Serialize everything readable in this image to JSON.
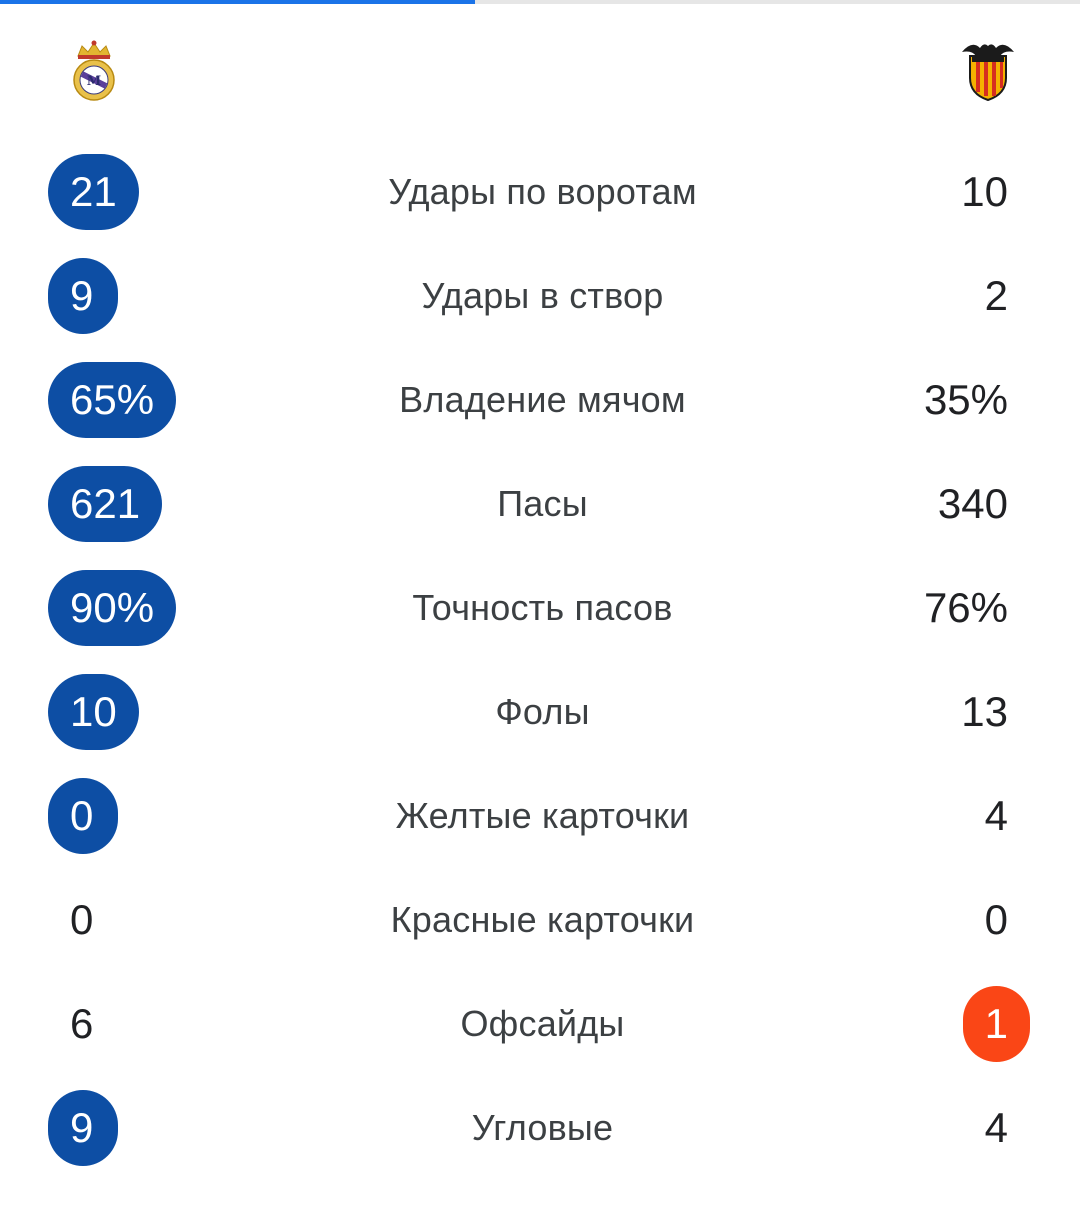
{
  "teams": {
    "home": {
      "crest_icon": "real-madrid-crest-icon",
      "highlight_color": "#0d4ea4"
    },
    "away": {
      "crest_icon": "valencia-crest-icon",
      "highlight_color": "#fa4616"
    }
  },
  "stats": [
    {
      "label": "Удары по воротам",
      "home": "21",
      "away": "10",
      "leader": "home"
    },
    {
      "label": "Удары в створ",
      "home": "9",
      "away": "2",
      "leader": "home"
    },
    {
      "label": "Владение мячом",
      "home": "65%",
      "away": "35%",
      "leader": "home"
    },
    {
      "label": "Пасы",
      "home": "621",
      "away": "340",
      "leader": "home"
    },
    {
      "label": "Точность пасов",
      "home": "90%",
      "away": "76%",
      "leader": "home"
    },
    {
      "label": "Фолы",
      "home": "10",
      "away": "13",
      "leader": "home"
    },
    {
      "label": "Желтые карточки",
      "home": "0",
      "away": "4",
      "leader": "home"
    },
    {
      "label": "Красные карточки",
      "home": "0",
      "away": "0",
      "leader": "none"
    },
    {
      "label": "Офсайды",
      "home": "6",
      "away": "1",
      "leader": "away"
    },
    {
      "label": "Угловые",
      "home": "9",
      "away": "4",
      "leader": "home"
    }
  ]
}
